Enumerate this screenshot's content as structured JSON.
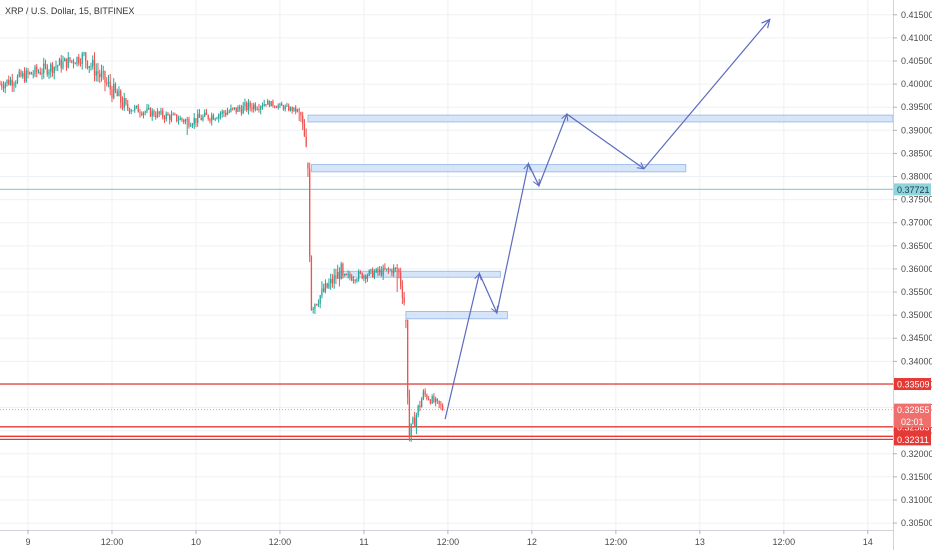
{
  "chart_data": {
    "type": "candlestick",
    "title": "XRP / U.S. Dollar, 15, BITFINEX",
    "y_ticks": [
      "0.41500",
      "0.41000",
      "0.40500",
      "0.40000",
      "0.39500",
      "0.39000",
      "0.38500",
      "0.38000",
      "0.37500",
      "0.37000",
      "0.36500",
      "0.36000",
      "0.35500",
      "0.35000",
      "0.34500",
      "0.34000",
      "0.33500",
      "0.33000",
      "0.32500",
      "0.32000",
      "0.31500",
      "0.31000",
      "0.30500"
    ],
    "y_tick_values": [
      0.415,
      0.41,
      0.405,
      0.4,
      0.395,
      0.39,
      0.385,
      0.38,
      0.375,
      0.37,
      0.365,
      0.36,
      0.355,
      0.35,
      0.345,
      0.34,
      0.335,
      0.33,
      0.325,
      0.32,
      0.315,
      0.31,
      0.305
    ],
    "ylim": [
      0.3035,
      0.4182
    ],
    "x_ticks": [
      "9",
      "12:00",
      "10",
      "12:00",
      "11",
      "12:00",
      "12",
      "12:00",
      "13",
      "12:00",
      "14"
    ],
    "x_tick_hours": [
      0,
      12,
      24,
      36,
      48,
      60,
      72,
      84,
      96,
      108,
      120
    ],
    "xlim_hours": [
      -4,
      123.6
    ],
    "series_segments": [
      {
        "from_hour": -4,
        "to_hour": 8,
        "start": 0.4,
        "end": 0.406,
        "lo": 0.397,
        "hi": 0.408
      },
      {
        "from_hour": 8,
        "to_hour": 14,
        "start": 0.406,
        "end": 0.395,
        "lo": 0.392,
        "hi": 0.407
      },
      {
        "from_hour": 14,
        "to_hour": 23,
        "start": 0.395,
        "end": 0.392,
        "lo": 0.389,
        "hi": 0.397
      },
      {
        "from_hour": 23,
        "to_hour": 34,
        "start": 0.392,
        "end": 0.396,
        "lo": 0.39,
        "hi": 0.399
      },
      {
        "from_hour": 34,
        "to_hour": 39,
        "start": 0.396,
        "end": 0.394,
        "lo": 0.392,
        "hi": 0.397
      },
      {
        "from_hour": 39,
        "to_hour": 40,
        "start": 0.393,
        "end": 0.383,
        "lo": 0.38,
        "hi": 0.394
      },
      {
        "from_hour": 40,
        "to_hour": 40.5,
        "start": 0.382,
        "end": 0.35,
        "lo": 0.345,
        "hi": 0.383
      },
      {
        "from_hour": 40.5,
        "to_hour": 45,
        "start": 0.352,
        "end": 0.36,
        "lo": 0.35,
        "hi": 0.363
      },
      {
        "from_hour": 45,
        "to_hour": 53,
        "start": 0.358,
        "end": 0.36,
        "lo": 0.355,
        "hi": 0.363
      },
      {
        "from_hour": 53,
        "to_hour": 54,
        "start": 0.359,
        "end": 0.351,
        "lo": 0.349,
        "hi": 0.361
      },
      {
        "from_hour": 54,
        "to_hour": 54.5,
        "start": 0.348,
        "end": 0.322,
        "lo": 0.3165,
        "hi": 0.349
      },
      {
        "from_hour": 54.5,
        "to_hour": 56.5,
        "start": 0.324,
        "end": 0.333,
        "lo": 0.322,
        "hi": 0.335
      },
      {
        "from_hour": 56.5,
        "to_hour": 59.5,
        "start": 0.333,
        "end": 0.3295,
        "lo": 0.3275,
        "hi": 0.3352
      }
    ],
    "zones": [
      {
        "from_hour": 40,
        "to_hour": 123.6,
        "lo": 0.3918,
        "hi": 0.3933
      },
      {
        "from_hour": 40.5,
        "to_hour": 94,
        "lo": 0.381,
        "hi": 0.3826
      },
      {
        "from_hour": 44.5,
        "to_hour": 67.5,
        "lo": 0.3587,
        "hi": 0.3595
      },
      {
        "from_hour": 54,
        "to_hour": 68.5,
        "lo": 0.3492,
        "hi": 0.3508
      }
    ],
    "arrow_path": [
      [
        59.6,
        0.3275
      ],
      [
        64.5,
        0.359
      ],
      [
        67,
        0.3505
      ],
      [
        71.5,
        0.3828
      ],
      [
        73,
        0.378
      ],
      [
        77,
        0.3935
      ],
      [
        88,
        0.3817
      ],
      [
        106,
        0.414
      ]
    ],
    "h_lines": [
      {
        "value": 0.33509,
        "label": "0.33509",
        "color": "#e53935",
        "style": "solid"
      },
      {
        "value": 0.32583,
        "label": "0.32583",
        "color": "#e53935",
        "style": "solid"
      },
      {
        "value": 0.32377,
        "label": "0.32377",
        "color": "#e53935",
        "style": "solid"
      },
      {
        "value": 0.32311,
        "label": "0.32311",
        "color": "#e53935",
        "style": "solid"
      },
      {
        "value": 0.37721,
        "label": "0.37721",
        "color": "#8fd3dd",
        "style": "solid"
      },
      {
        "value": 0.32955,
        "label": "0.32955",
        "color": "#ef9a9a",
        "style": "dotted"
      }
    ],
    "last_price_label": "0.32955",
    "countdown_label": "02:01",
    "colors": {
      "up": "#26a69a",
      "down": "#ef5350",
      "zone_fill": "#cfe0f7",
      "zone_stroke": "#5b8dd9",
      "arrow": "#5c6bc0",
      "grid": "#eef0f4"
    },
    "grid": true
  }
}
